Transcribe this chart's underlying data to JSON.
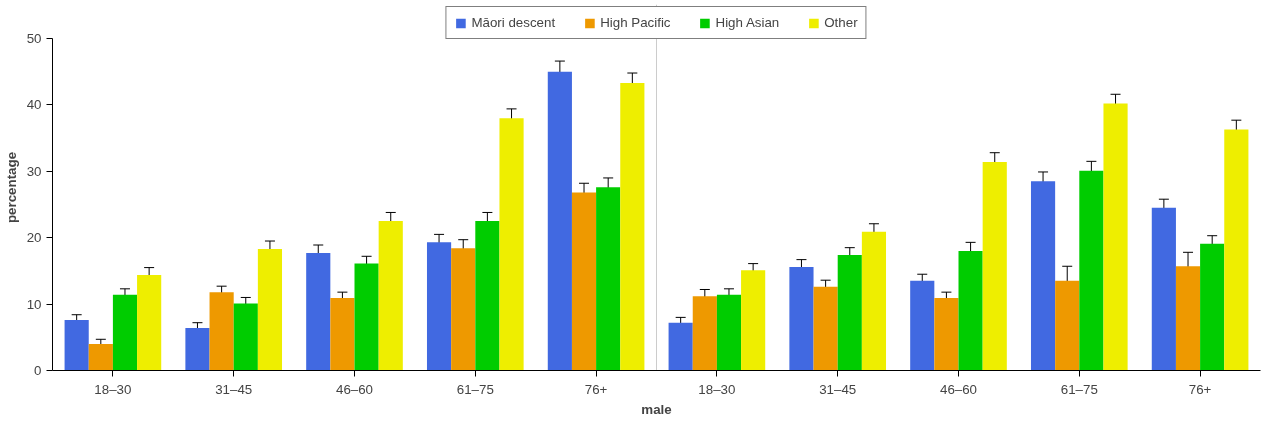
{
  "chart_data": {
    "type": "bar",
    "xlabel": "male",
    "ylabel": "percentage",
    "categories": [
      "18–30",
      "31–45",
      "46–60",
      "61–75",
      "76+",
      "18–30",
      "31–45",
      "46–60",
      "61–75",
      "76+"
    ],
    "series": [
      {
        "name": "Māori descent",
        "color": "#4169e1",
        "values": [
          7.6,
          6.4,
          17.7,
          19.3,
          45.0,
          7.2,
          15.6,
          13.5,
          28.5,
          24.5
        ],
        "errors": [
          0.8,
          0.8,
          1.2,
          1.2,
          1.6,
          0.8,
          1.1,
          1.0,
          1.4,
          1.3
        ]
      },
      {
        "name": "High Pacific",
        "color": "#ee9900",
        "values": [
          4.0,
          11.8,
          10.9,
          18.4,
          26.8,
          11.2,
          12.6,
          10.9,
          13.5,
          15.7
        ],
        "errors": [
          0.7,
          0.9,
          0.9,
          1.3,
          1.4,
          1.0,
          1.0,
          0.9,
          2.2,
          2.1
        ]
      },
      {
        "name": "High Asian",
        "color": "#00cc00",
        "values": [
          11.4,
          10.1,
          16.1,
          22.5,
          27.6,
          11.4,
          17.4,
          18.0,
          30.1,
          19.1
        ],
        "errors": [
          0.9,
          0.9,
          1.1,
          1.3,
          1.4,
          0.9,
          1.1,
          1.3,
          1.4,
          1.2
        ]
      },
      {
        "name": "Other",
        "color": "#eeee00",
        "values": [
          14.4,
          18.3,
          22.5,
          38.0,
          43.3,
          15.1,
          20.9,
          31.4,
          40.2,
          36.3
        ],
        "errors": [
          1.1,
          1.2,
          1.3,
          1.4,
          1.5,
          1.0,
          1.2,
          1.4,
          1.4,
          1.4
        ]
      }
    ],
    "ylim": [
      0,
      50
    ],
    "yticks": [
      0,
      10,
      20,
      30,
      40,
      50
    ],
    "legend": "top",
    "grid": false
  }
}
